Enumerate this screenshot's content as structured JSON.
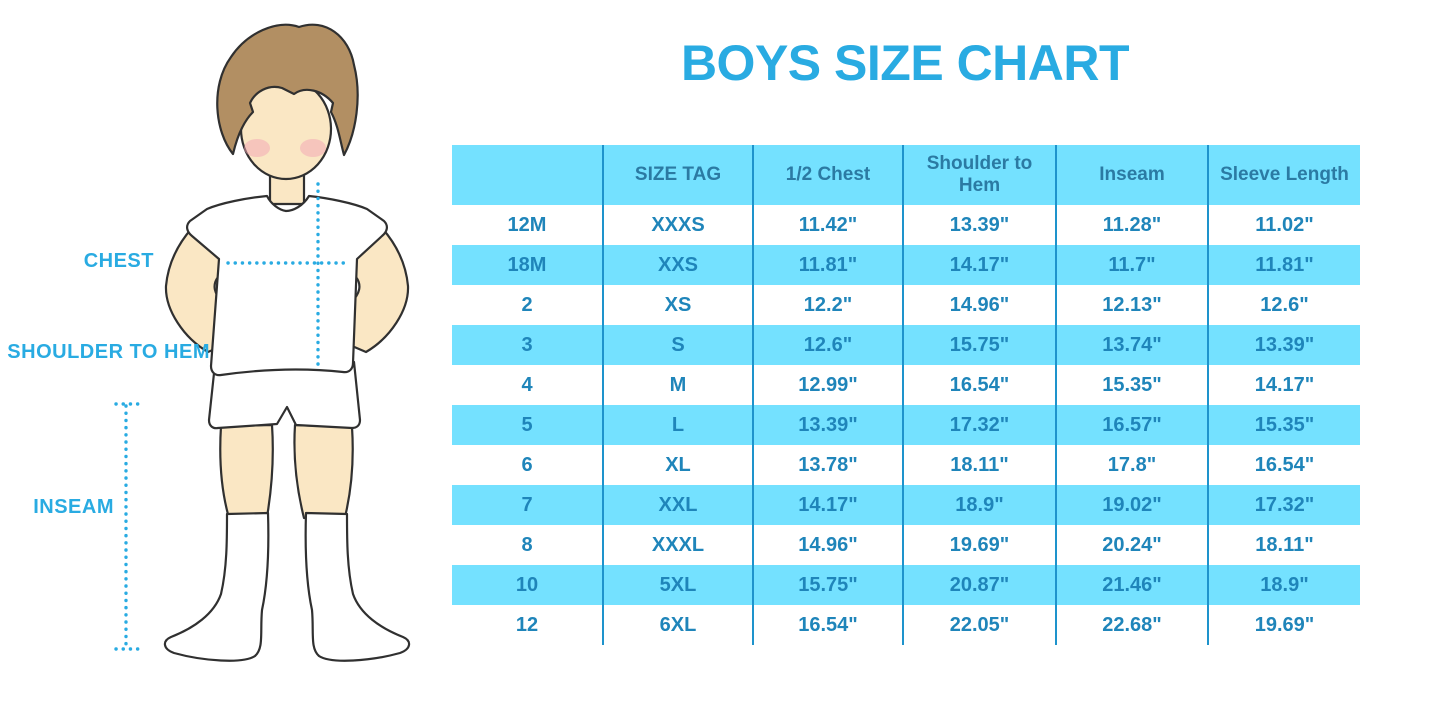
{
  "header": {
    "title": "BOYS SIZE CHART"
  },
  "figure": {
    "chest_label": "CHEST",
    "shoulder_label": "SHOULDER TO HEM",
    "inseam_label": "INSEAM"
  },
  "chart_data": {
    "type": "table",
    "title": "BOYS SIZE CHART",
    "columns": [
      "",
      "SIZE TAG",
      "1/2 Chest",
      "Shoulder to Hem",
      "Inseam",
      "Sleeve Length"
    ],
    "rows": [
      [
        "12M",
        "XXXS",
        "11.42\"",
        "13.39\"",
        "11.28\"",
        "11.02\""
      ],
      [
        "18M",
        "XXS",
        "11.81\"",
        "14.17\"",
        "11.7\"",
        "11.81\""
      ],
      [
        "2",
        "XS",
        "12.2\"",
        "14.96\"",
        "12.13\"",
        "12.6\""
      ],
      [
        "3",
        "S",
        "12.6\"",
        "15.75\"",
        "13.74\"",
        "13.39\""
      ],
      [
        "4",
        "M",
        "12.99\"",
        "16.54\"",
        "15.35\"",
        "14.17\""
      ],
      [
        "5",
        "L",
        "13.39\"",
        "17.32\"",
        "16.57\"",
        "15.35\""
      ],
      [
        "6",
        "XL",
        "13.78\"",
        "18.11\"",
        "17.8\"",
        "16.54\""
      ],
      [
        "7",
        "XXL",
        "14.17\"",
        "18.9\"",
        "19.02\"",
        "17.32\""
      ],
      [
        "8",
        "XXXL",
        "14.96\"",
        "19.69\"",
        "20.24\"",
        "18.11\""
      ],
      [
        "10",
        "5XL",
        "15.75\"",
        "20.87\"",
        "21.46\"",
        "18.9\""
      ],
      [
        "12",
        "6XL",
        "16.54\"",
        "22.05\"",
        "22.68\"",
        "19.69\""
      ]
    ]
  },
  "colors": {
    "accent": "#29ABE2",
    "table_fill": "#74E1FF",
    "table_text": "#1F85BA",
    "table_header_text": "#2B7AA3",
    "table_divider": "#1E93CC",
    "skin": "#FAE7C4",
    "hair": "#B28F63",
    "blush": "#F2A4B4",
    "outline": "#303030"
  }
}
